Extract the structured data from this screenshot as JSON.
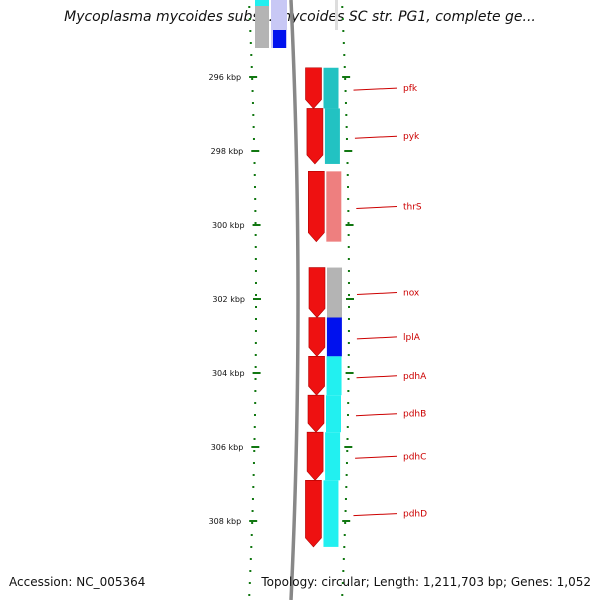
{
  "title": "Mycoplasma mycoides subsp. mycoides SC str. PG1, complete ge...",
  "footer": {
    "accession": "Accession: NC_005364",
    "summary": "Topology: circular; Length: 1,211,703 bp; Genes: 1,052"
  },
  "colors": {
    "strand_feature": "#ee1111",
    "pfk": "#22c2c2",
    "pyk": "#22c2c2",
    "thrS": "#ee7f7f",
    "nox": "#b4b4b4",
    "lplA": "#0011ee",
    "pdh": "#22f0f0",
    "tick": "#117711",
    "label": "#cc0000",
    "backbone": "#888888"
  },
  "scale": {
    "unit": "kbp",
    "ticks": [
      {
        "kbp": 296,
        "label": "296 kbp"
      },
      {
        "kbp": 298,
        "label": "298 kbp"
      },
      {
        "kbp": 300,
        "label": "300 kbp"
      },
      {
        "kbp": 302,
        "label": "302 kbp"
      },
      {
        "kbp": 304,
        "label": "304 kbp"
      },
      {
        "kbp": 306,
        "label": "306 kbp"
      },
      {
        "kbp": 308,
        "label": "308 kbp"
      }
    ]
  },
  "genes": [
    {
      "name": "pfk",
      "start_kbp": 295.75,
      "end_kbp": 296.85
    },
    {
      "name": "pyk",
      "start_kbp": 296.85,
      "end_kbp": 298.35
    },
    {
      "name": "thrS",
      "start_kbp": 298.55,
      "end_kbp": 300.45
    },
    {
      "name": "nox",
      "start_kbp": 301.15,
      "end_kbp": 302.5
    },
    {
      "name": "lplA",
      "start_kbp": 302.5,
      "end_kbp": 303.55
    },
    {
      "name": "pdhA",
      "start_kbp": 303.55,
      "end_kbp": 304.6
    },
    {
      "name": "pdhB",
      "start_kbp": 304.6,
      "end_kbp": 305.6
    },
    {
      "name": "pdhC",
      "start_kbp": 305.6,
      "end_kbp": 306.9
    },
    {
      "name": "pdhD",
      "start_kbp": 306.9,
      "end_kbp": 308.7
    }
  ]
}
